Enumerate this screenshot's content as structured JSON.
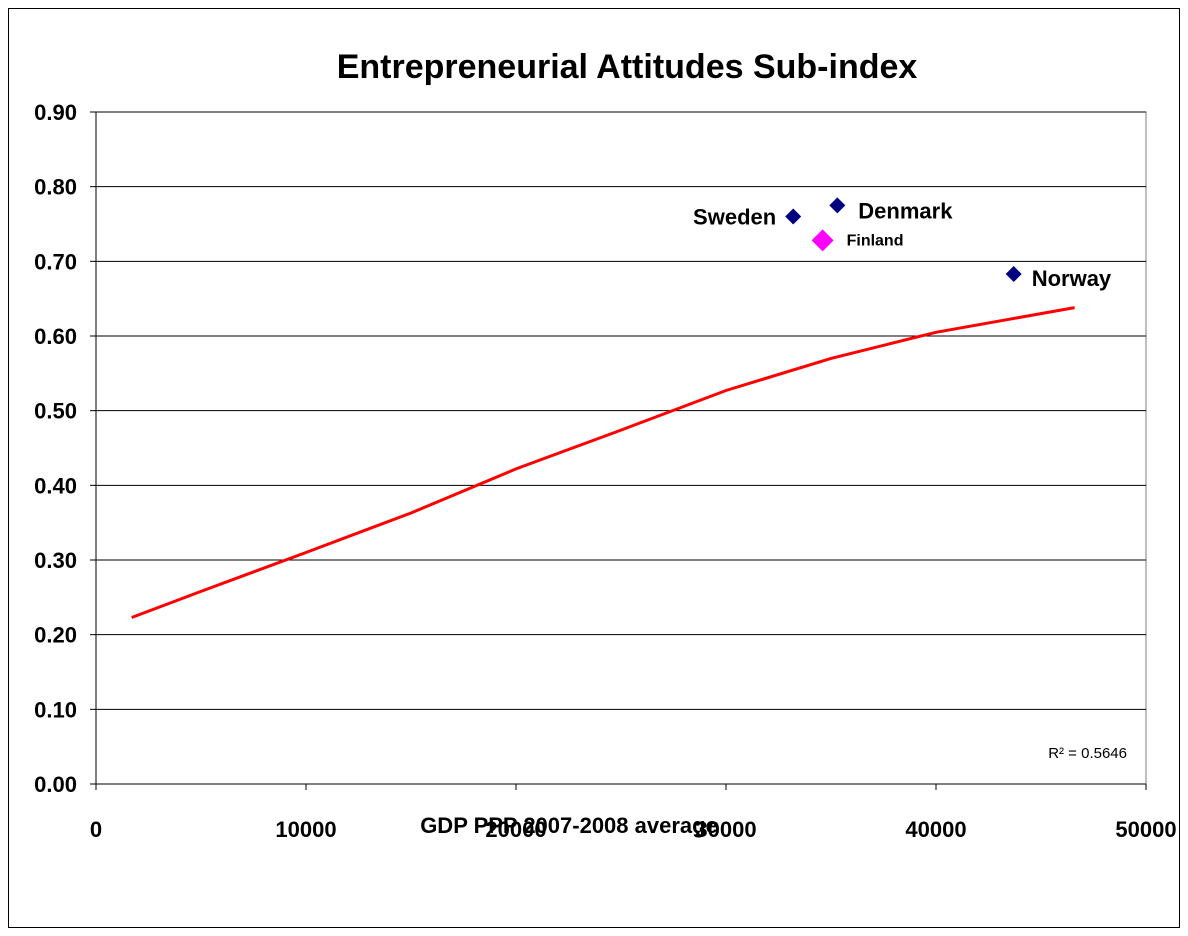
{
  "chart_data": {
    "type": "scatter",
    "title": "Entrepreneurial Attitudes Sub-index",
    "xlabel": "GDP PPP 2007-2008 average",
    "ylabel": "",
    "xlim": [
      0,
      50000
    ],
    "ylim": [
      0.0,
      0.9
    ],
    "x_ticks": [
      "0",
      "10000",
      "20000",
      "30000",
      "40000",
      "50000"
    ],
    "y_ticks": [
      "0.00",
      "0.10",
      "0.20",
      "0.30",
      "0.40",
      "0.50",
      "0.60",
      "0.70",
      "0.80",
      "0.90"
    ],
    "grid": "horizontal",
    "points": [
      {
        "label": "Sweden",
        "x": 33200,
        "y": 0.76,
        "color": "#000080",
        "highlight": false
      },
      {
        "label": "Denmark",
        "x": 35300,
        "y": 0.775,
        "color": "#000080",
        "highlight": false
      },
      {
        "label": "Finland",
        "x": 34600,
        "y": 0.728,
        "color": "#ff00ff",
        "highlight": true
      },
      {
        "label": "Norway",
        "x": 43700,
        "y": 0.683,
        "color": "#000080",
        "highlight": false
      }
    ],
    "trendline": {
      "type": "logarithmic",
      "color": "#ff0000",
      "x_range": [
        1700,
        46600
      ],
      "points": [
        {
          "x": 1700,
          "y": 0.223
        },
        {
          "x": 5000,
          "y": 0.258
        },
        {
          "x": 10000,
          "y": 0.31
        },
        {
          "x": 15000,
          "y": 0.363
        },
        {
          "x": 20000,
          "y": 0.422
        },
        {
          "x": 25000,
          "y": 0.474
        },
        {
          "x": 30000,
          "y": 0.527
        },
        {
          "x": 35000,
          "y": 0.57
        },
        {
          "x": 40000,
          "y": 0.605
        },
        {
          "x": 46600,
          "y": 0.638
        }
      ],
      "r2_label": "R² = 0.5646"
    }
  }
}
